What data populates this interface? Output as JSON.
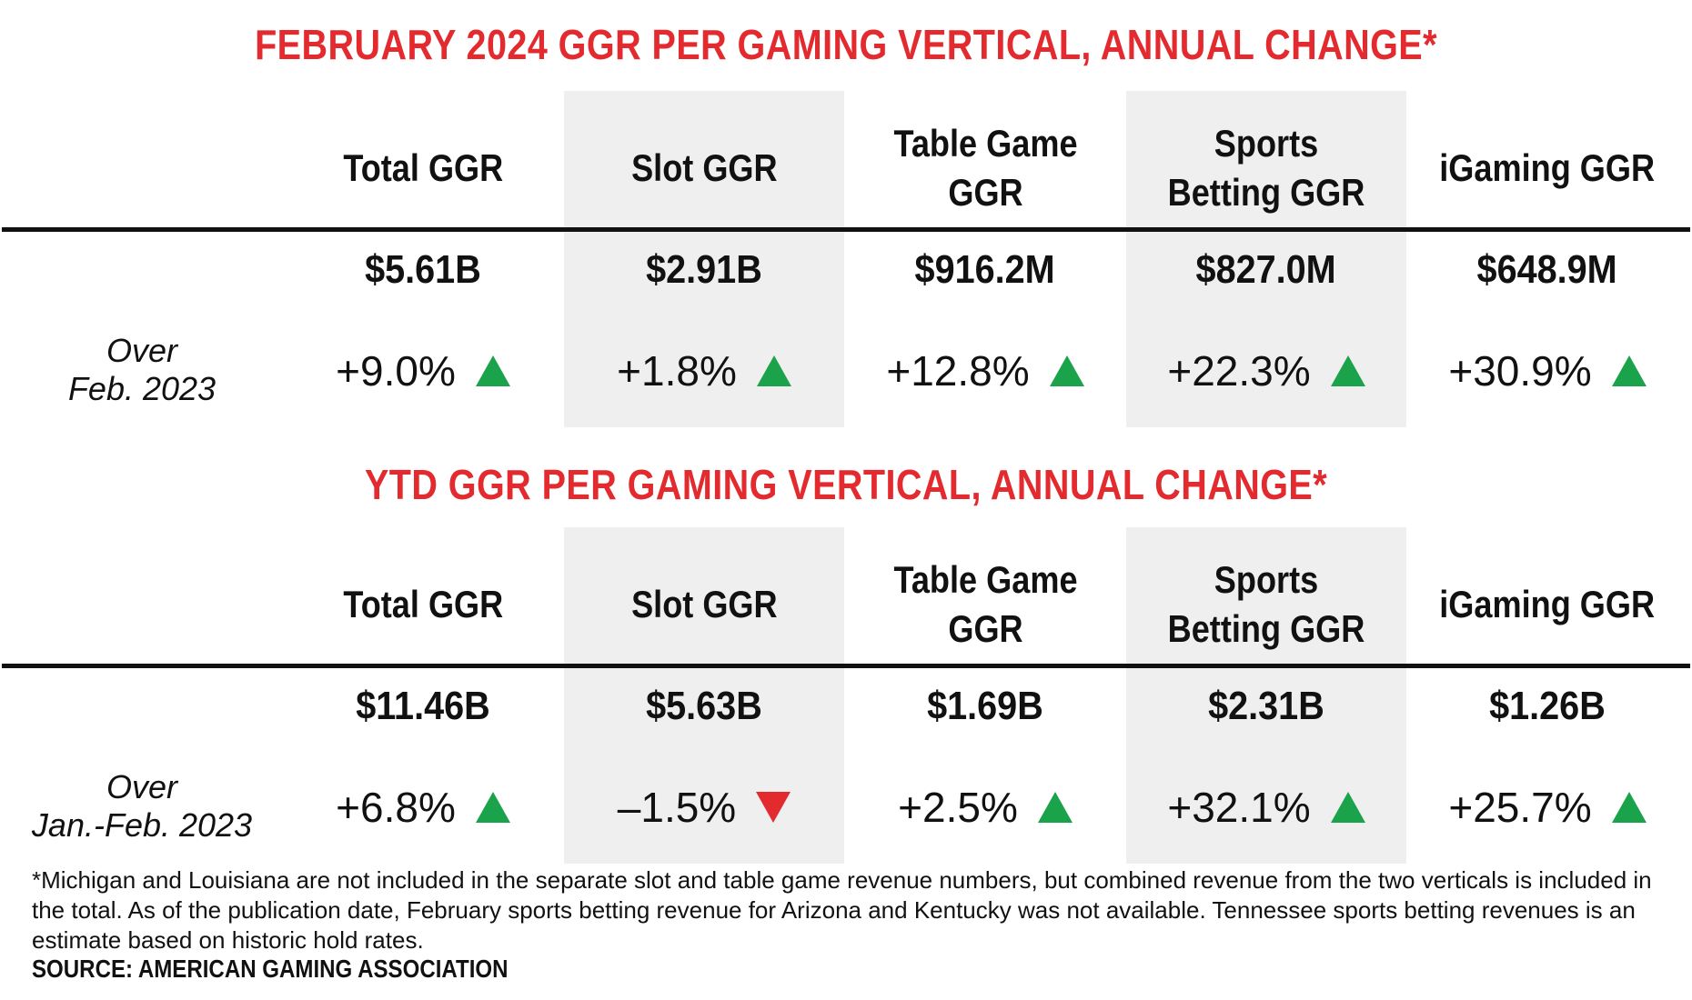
{
  "chart_data": [
    {
      "type": "table",
      "title": "FEBRUARY 2024 GGR PER GAMING VERTICAL, ANNUAL CHANGE*",
      "columns": [
        "Total GGR",
        "Slot GGR",
        "Table Game\nGGR",
        "Sports\nBetting GGR",
        "iGaming GGR"
      ],
      "values": [
        "$5.61B",
        "$2.91B",
        "$916.2M",
        "$827.0M",
        "$648.9M"
      ],
      "change_label": "Over\nFeb. 2023",
      "changes": [
        "+9.0%",
        "+1.8%",
        "+12.8%",
        "+22.3%",
        "+30.9%"
      ],
      "directions": [
        "up",
        "up",
        "up",
        "up",
        "up"
      ]
    },
    {
      "type": "table",
      "title": "YTD GGR PER GAMING VERTICAL, ANNUAL CHANGE*",
      "columns": [
        "Total GGR",
        "Slot GGR",
        "Table Game\nGGR",
        "Sports\nBetting GGR",
        "iGaming GGR"
      ],
      "values": [
        "$11.46B",
        "$5.63B",
        "$1.69B",
        "$2.31B",
        "$1.26B"
      ],
      "change_label": "Over\nJan.-Feb. 2023",
      "changes": [
        "+6.8%",
        "–1.5%",
        "+2.5%",
        "+32.1%",
        "+25.7%"
      ],
      "directions": [
        "up",
        "down",
        "up",
        "up",
        "up"
      ]
    }
  ],
  "footnote": "*Michigan and Louisiana are not included in the separate slot and table game revenue numbers, but combined revenue from the two verticals is included in the total. As of the publication date, February sports betting revenue for Arizona and Kentucky was not available. Tennessee sports betting revenues is an estimate based on historic hold rates.",
  "source": "SOURCE: AMERICAN GAMING ASSOCIATION",
  "colors": {
    "title": "#e22a2f",
    "up": "#1aa34a",
    "down": "#e22a2f",
    "shade": "#efefef"
  }
}
